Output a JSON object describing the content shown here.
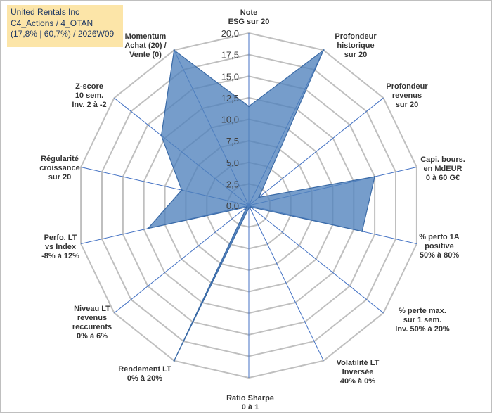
{
  "title_box": {
    "line1": "United Rentals Inc",
    "line2": "C4_Actions / 4_OTAN",
    "line3": "(17,8% | 60,7%) / 2026W09"
  },
  "colors": {
    "fill": "#4f81bd",
    "stroke": "#3a6aa6",
    "spoke": "#4472c4",
    "ring": "#bfbfbf",
    "title_bg": "#fce5a8",
    "title_text": "#1f3864"
  },
  "chart_data": {
    "type": "radar",
    "rmin": 0,
    "rmax": 20,
    "ticks": [
      "0,0",
      "2,5",
      "5,0",
      "7,5",
      "10,0",
      "12,5",
      "15,0",
      "17,5",
      "20,0"
    ],
    "tick_values": [
      0,
      2.5,
      5,
      7.5,
      10,
      12.5,
      15,
      17.5,
      20
    ],
    "axes": [
      {
        "lines": [
          "Note",
          "ESG sur 20"
        ],
        "value": 11.5
      },
      {
        "lines": [
          "Profondeur",
          "historique",
          "sur 20"
        ],
        "value": 20
      },
      {
        "lines": [
          "Profondeur",
          "revenus",
          "sur 20"
        ],
        "value": 1.5
      },
      {
        "lines": [
          "Capi. bours.",
          "en MdEUR",
          "0 à 60 G€"
        ],
        "value": 15
      },
      {
        "lines": [
          "% perfo 1A",
          "positive",
          "50% à 80%"
        ],
        "value": 13.5
      },
      {
        "lines": [
          "% perte max.",
          "sur 1 sem.",
          "Inv. 50% à 20%"
        ],
        "value": 0.3
      },
      {
        "lines": [
          "Volatilité LT",
          "Inversée",
          "40% à 0%"
        ],
        "value": 0.3
      },
      {
        "lines": [
          "Ratio Sharpe",
          "0 à 1"
        ],
        "value": 0.3
      },
      {
        "lines": [
          "Rendement LT",
          "0% à 20%"
        ],
        "value": 20
      },
      {
        "lines": [
          "Niveau LT",
          "revenus",
          "reccurents",
          "0% à 6%"
        ],
        "value": 0.3
      },
      {
        "lines": [
          "Perfo. LT",
          "vs Index",
          "-8% à 12%"
        ],
        "value": 12
      },
      {
        "lines": [
          "Régularité",
          "croissance",
          "sur 20"
        ],
        "value": 8
      },
      {
        "lines": [
          "Z-score",
          "10 sem.",
          "Inv. 2 à -2"
        ],
        "value": 13
      },
      {
        "lines": [
          "Momentum",
          "Achat (20) /",
          "Vente (0)"
        ],
        "value": 20
      }
    ],
    "grid": true,
    "legend": "none"
  }
}
